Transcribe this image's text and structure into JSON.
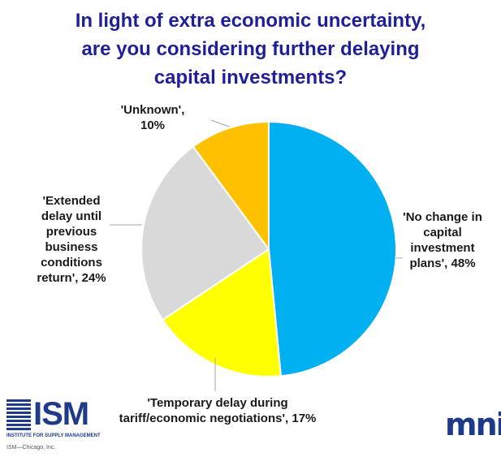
{
  "chart_data": {
    "type": "pie",
    "title_lines": [
      "In light of extra economic uncertainty,",
      "are you considering further delaying",
      "capital investments?"
    ],
    "slices": [
      {
        "label_lines": [
          "'No change in",
          "capital",
          "investment",
          "plans', 48%"
        ],
        "value": 48,
        "color": "#00b0f0"
      },
      {
        "label_lines": [
          "'Temporary delay during",
          "tariff/economic negotiations', 17%"
        ],
        "value": 17,
        "color": "#ffff00"
      },
      {
        "label_lines": [
          "'Extended",
          "delay until",
          "previous",
          "business",
          "conditions",
          "return', 24%"
        ],
        "value": 24,
        "color": "#d9d9d9"
      },
      {
        "label_lines": [
          "'Unknown',",
          "10%"
        ],
        "value": 10,
        "color": "#ffc000"
      }
    ]
  },
  "logos": {
    "ism": {
      "text": "ISM",
      "subtitle": "INSTITUTE FOR SUPPLY MANAGEMENT",
      "chapter": "ISM—Chicago, Inc."
    },
    "mni": {
      "text": "mni"
    }
  }
}
